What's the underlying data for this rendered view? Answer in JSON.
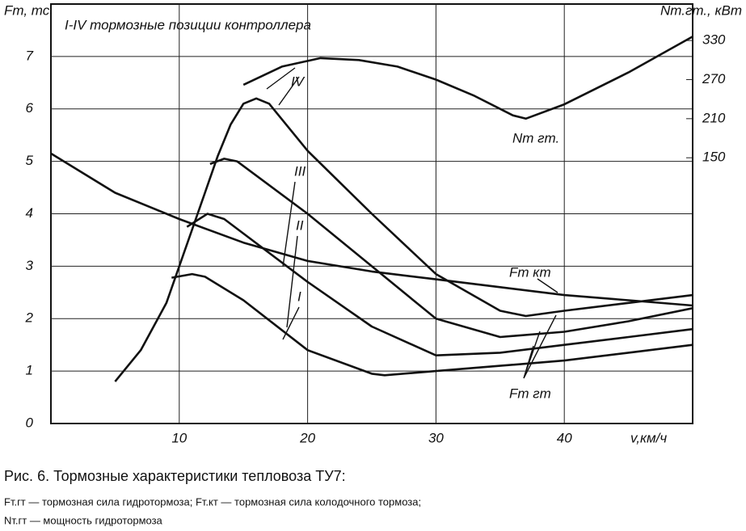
{
  "chart_data": {
    "type": "line",
    "y_label": "Fт, тс",
    "y2_label": "Nт.гт., кВт",
    "x_label": "v,км/ч",
    "annotation": "I-IV тормозные позиции контроллера",
    "curve_labels": [
      "IV",
      "III",
      "II",
      "I",
      "Nт гт.",
      "Fт кт",
      "Fт гт"
    ],
    "xlim": [
      0,
      50
    ],
    "xticks": [
      10,
      20,
      30,
      40
    ],
    "ylim": [
      0,
      8
    ],
    "yticks": [
      0,
      1,
      2,
      3,
      4,
      5,
      6,
      7
    ],
    "y2lim": [
      -258,
      386
    ],
    "y2ticks": [
      150,
      210,
      270,
      330
    ],
    "grid": true,
    "series": [
      {
        "name": "Fт кт",
        "color": "#111111",
        "x": [
          0,
          5,
          10,
          15,
          20,
          25,
          30,
          35,
          40,
          45,
          50
        ],
        "values": [
          5.15,
          4.4,
          3.9,
          3.45,
          3.1,
          2.9,
          2.75,
          2.6,
          2.45,
          2.35,
          2.25
        ]
      },
      {
        "name": "IV",
        "color": "#111111",
        "x": [
          5,
          7,
          9,
          10,
          11,
          12,
          13,
          14,
          15,
          16,
          17,
          20,
          25,
          30,
          35,
          37,
          40,
          45,
          50
        ],
        "values": [
          0.8,
          1.4,
          2.3,
          3.0,
          3.7,
          4.4,
          5.1,
          5.7,
          6.1,
          6.2,
          6.1,
          5.2,
          4.0,
          2.85,
          2.15,
          2.05,
          2.15,
          2.3,
          2.45
        ]
      },
      {
        "name": "III",
        "color": "#111111",
        "x": [
          12.4,
          13.5,
          14.5,
          20,
          25,
          30,
          35,
          40,
          45,
          50
        ],
        "values": [
          4.95,
          5.05,
          5.0,
          4.0,
          3.0,
          2.0,
          1.65,
          1.75,
          1.95,
          2.2
        ]
      },
      {
        "name": "II",
        "color": "#111111",
        "x": [
          10.6,
          12.2,
          13.5,
          20,
          25,
          30,
          35,
          40,
          45,
          50
        ],
        "values": [
          3.75,
          4.0,
          3.9,
          2.7,
          1.85,
          1.3,
          1.35,
          1.5,
          1.65,
          1.8
        ]
      },
      {
        "name": "I",
        "color": "#111111",
        "x": [
          9.4,
          11,
          12,
          15,
          20,
          25,
          26,
          30,
          35,
          40,
          45,
          50
        ],
        "values": [
          2.78,
          2.85,
          2.8,
          2.35,
          1.4,
          0.95,
          0.92,
          1.0,
          1.1,
          1.2,
          1.35,
          1.5
        ]
      },
      {
        "name": "Nт гт.",
        "color": "#111111",
        "axis": "y2",
        "x": [
          15,
          18,
          21,
          24,
          27,
          30,
          33,
          36,
          37,
          40,
          45,
          50
        ],
        "values": [
          262,
          290,
          303,
          300,
          290,
          270,
          245,
          215,
          210,
          232,
          281,
          336
        ]
      }
    ]
  },
  "caption": {
    "title": "Рис. 6. Тормозные характеристики тепловоза ТУ7:",
    "line1": "Fт.гт — тормозная сила гидротормоза; Fт.кт — тормозная сила колодочного тормоза;",
    "line2": "Nт.гт — мощность гидротормоза"
  }
}
